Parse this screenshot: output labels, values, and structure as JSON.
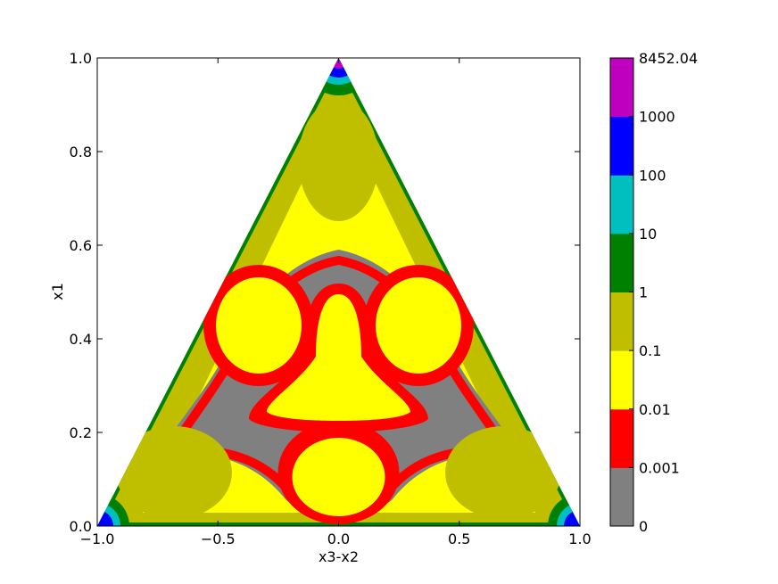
{
  "chart_data": {
    "type": "contourf",
    "region": "triangle",
    "xlabel": "x3-x2",
    "ylabel": "x1",
    "xlim": [
      -1.0,
      1.0
    ],
    "ylim": [
      0.0,
      1.0
    ],
    "xticks": [
      -1.0,
      -0.5,
      0.0,
      0.5,
      1.0
    ],
    "xtick_labels": [
      "−1.0",
      "−0.5",
      "0.0",
      "0.5",
      "1.0"
    ],
    "yticks": [
      0.0,
      0.2,
      0.4,
      0.6,
      0.8,
      1.0
    ],
    "ytick_labels": [
      "0.0",
      "0.2",
      "0.4",
      "0.6",
      "0.8",
      "1.0"
    ],
    "triangle_vertices": [
      [
        -1.0,
        0.0
      ],
      [
        1.0,
        0.0
      ],
      [
        0.0,
        1.0
      ]
    ],
    "colorbar": {
      "levels": [
        0,
        0.001,
        0.01,
        0.1,
        1,
        10,
        100,
        1000,
        8452.04
      ],
      "labels": [
        "0",
        "0.001",
        "0.01",
        "0.1",
        "1",
        "10",
        "100",
        "1000",
        "8452.04"
      ],
      "colors": [
        "#808080",
        "#ff0000",
        "#ffff00",
        "#bfbf00",
        "#008000",
        "#00bfbf",
        "#0000ff",
        "#bf00bf"
      ]
    }
  }
}
